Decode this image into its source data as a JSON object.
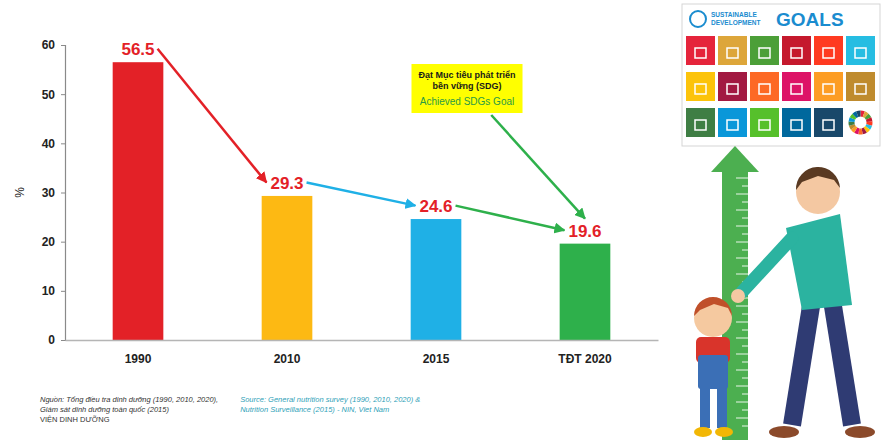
{
  "chart_data": {
    "type": "bar",
    "categories": [
      "1990",
      "2010",
      "2015",
      "TĐT 2020"
    ],
    "values": [
      56.5,
      29.3,
      24.6,
      19.6
    ],
    "colors": [
      "#e32127",
      "#fdb913",
      "#1fb0e6",
      "#2eb04b"
    ],
    "ylim": [
      0,
      60
    ],
    "yticks": [
      0,
      10,
      20,
      30,
      40,
      50,
      60
    ],
    "y_label": "%",
    "grid": false,
    "data_labels": true,
    "annotation": {
      "text": [
        "Đạt Mục tiêu phát triển",
        "bền vững (SDG)"
      ],
      "text_en": "Achieved SDGs Goal"
    },
    "source": {
      "vi": [
        "Nguồn: Tổng điều tra dinh dưỡng (1990, 2010, 2020),",
        "Giám sát dinh dưỡng toàn quốc (2015)",
        "VIỆN DINH DƯỠNG"
      ],
      "en": [
        "Source: General nutrition survey (1990, 2010, 2020) &",
        "Nutrition Surveillance (2015) - NIN, Viet Nam"
      ]
    }
  },
  "illustration": {
    "title": [
      "SUSTAINABLE",
      "DEVELOPMENT",
      "GOALS"
    ]
  }
}
